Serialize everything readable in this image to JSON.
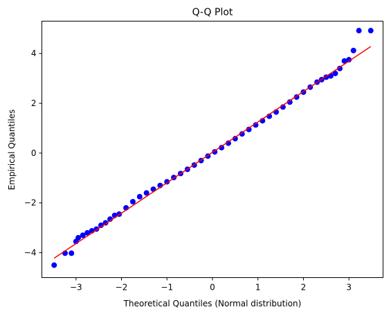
{
  "chart_data": {
    "type": "scatter",
    "title": "Q-Q Plot",
    "xlabel": "Theoretical Quantiles (Normal distribution)",
    "ylabel": "Empirical Quantiles",
    "xlim": [
      -3.75,
      3.75
    ],
    "ylim": [
      -5.0,
      5.3
    ],
    "xticks": [
      -3,
      -2,
      -1,
      0,
      1,
      2,
      3
    ],
    "yticks": [
      -4,
      -2,
      0,
      2,
      4
    ],
    "xtick_labels": [
      "−3",
      "−2",
      "−1",
      "0",
      "1",
      "2",
      "3"
    ],
    "ytick_labels": [
      "−4",
      "−2",
      "0",
      "2",
      "4"
    ],
    "grid": false,
    "legend": "none",
    "colors": {
      "points": "#0000ff",
      "line": "#ff0000"
    },
    "reference_line": {
      "x": [
        -3.48,
        3.48
      ],
      "y": [
        -4.22,
        4.28
      ]
    },
    "points": {
      "x": [
        -3.48,
        -3.24,
        -3.1,
        -3.0,
        -2.95,
        -2.85,
        -2.75,
        -2.65,
        -2.55,
        -2.45,
        -2.35,
        -2.25,
        -2.15,
        -2.05,
        -1.9,
        -1.75,
        -1.6,
        -1.45,
        -1.3,
        -1.15,
        -1.0,
        -0.85,
        -0.7,
        -0.55,
        -0.4,
        -0.25,
        -0.1,
        0.05,
        0.2,
        0.35,
        0.5,
        0.65,
        0.8,
        0.95,
        1.1,
        1.25,
        1.4,
        1.55,
        1.7,
        1.85,
        2.0,
        2.15,
        2.3,
        2.4,
        2.5,
        2.6,
        2.7,
        2.8,
        2.9,
        3.0,
        3.1,
        3.22,
        3.48
      ],
      "y": [
        -4.5,
        -4.02,
        -4.02,
        -3.55,
        -3.4,
        -3.3,
        -3.2,
        -3.12,
        -3.05,
        -2.9,
        -2.8,
        -2.65,
        -2.5,
        -2.45,
        -2.2,
        -1.95,
        -1.75,
        -1.6,
        -1.45,
        -1.3,
        -1.15,
        -0.98,
        -0.82,
        -0.65,
        -0.48,
        -0.3,
        -0.12,
        0.05,
        0.22,
        0.4,
        0.58,
        0.77,
        0.95,
        1.13,
        1.3,
        1.48,
        1.65,
        1.85,
        2.05,
        2.25,
        2.45,
        2.65,
        2.85,
        2.95,
        3.05,
        3.1,
        3.2,
        3.4,
        3.7,
        3.75,
        4.12,
        4.92,
        4.92
      ]
    }
  }
}
